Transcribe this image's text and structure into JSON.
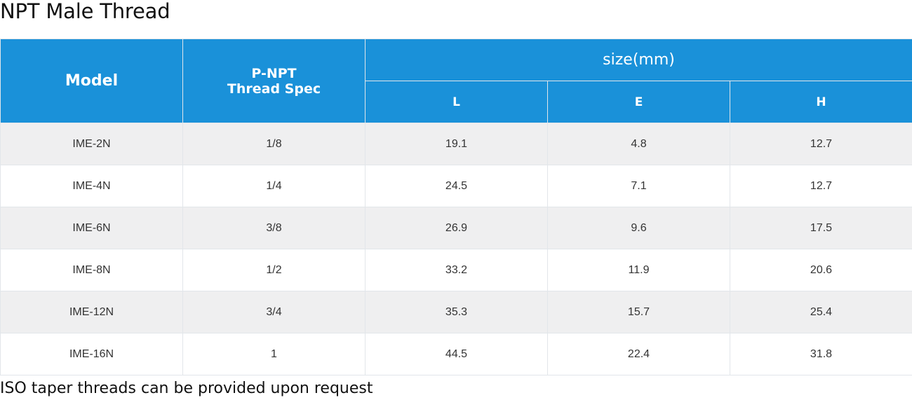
{
  "title": "NPT Male Thread",
  "table": {
    "header": {
      "model": "Model",
      "thread_spec_line1": "P-NPT",
      "thread_spec_line2": "Thread Spec",
      "size_group": "size(mm)",
      "sub": [
        "L",
        "E",
        "H"
      ]
    },
    "rows": [
      [
        "IME-2N",
        "1/8",
        "19.1",
        "4.8",
        "12.7"
      ],
      [
        "IME-4N",
        "1/4",
        "24.5",
        "7.1",
        "12.7"
      ],
      [
        "IME-6N",
        "3/8",
        "26.9",
        "9.6",
        "17.5"
      ],
      [
        "IME-8N",
        "1/2",
        "33.2",
        "11.9",
        "20.6"
      ],
      [
        "IME-12N",
        "3/4",
        "35.3",
        "15.7",
        "25.4"
      ],
      [
        "IME-16N",
        "1",
        "44.5",
        "22.4",
        "31.8"
      ]
    ]
  },
  "footnote": "ISO taper threads can be provided upon request",
  "colors": {
    "header_bg": "#1a91d9",
    "row_alt_bg": "#efeff0"
  }
}
